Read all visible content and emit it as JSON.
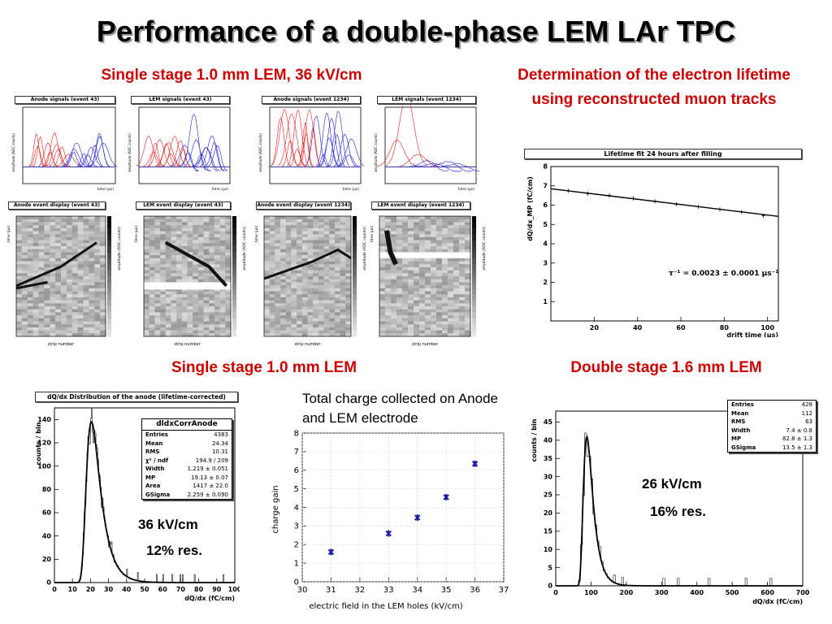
{
  "slide": {
    "title": "Performance of a double-phase LEM LAr TPC",
    "heading_top_left": "Single stage 1.0 mm LEM, 36 kV/cm",
    "heading_top_right": "Determination of the electron lifetime using reconstructed muon tracks",
    "heading_bottom_left": "Single stage 1.0 mm LEM",
    "heading_bottom_right": "Double stage 1.6 mm LEM",
    "heading_bottom_middle": "Total charge collected on Anode and LEM electrode",
    "note_left_field": "36 kV/cm",
    "note_left_res": "12% res.",
    "note_right_field": "26 kV/cm",
    "note_right_res": "16% res."
  },
  "signals": {
    "titles": [
      "Anode signals (event 43)",
      "LEM signals (event 43)",
      "Anode signals (event 1234)",
      "LEM signals (event 1234)"
    ],
    "ylabel": "amplitude (ADC counts)",
    "xlabel": "time (µs)"
  },
  "displays": {
    "titles": [
      "Anode event display (event 43)",
      "LEM event display (event 43)",
      "Anode event display (event 1234)",
      "LEM event display (event 1234)"
    ],
    "xlabel": "strip number",
    "ylabel": "time (µs)",
    "zlabel": "amplitude (ADC counts)"
  },
  "colors": {
    "heading_red": "#cc0000",
    "signal_red": "#e02020",
    "signal_blue": "#2020d0",
    "gain_marker": "#1a1aa0"
  },
  "chart_data": [
    {
      "id": "lifetime",
      "type": "line",
      "title": "Lifetime fit 24 hours after filling",
      "xlabel": "drift time (µs)",
      "ylabel": "dQ/dx_MP (fC/cm)",
      "xlim": [
        0,
        105
      ],
      "ylim": [
        0,
        8
      ],
      "xticks": [
        20,
        40,
        60,
        80,
        100
      ],
      "yticks": [
        1,
        2,
        3,
        4,
        5,
        6,
        7,
        8
      ],
      "points_x": [
        8,
        17,
        27,
        38,
        48,
        58,
        68,
        78,
        88,
        98
      ],
      "points_y": [
        6.75,
        6.6,
        6.5,
        6.35,
        6.2,
        6.05,
        5.92,
        5.78,
        5.65,
        5.45
      ],
      "fit": {
        "x0": 0,
        "y0": 6.85,
        "x1": 105,
        "y1": 5.42
      },
      "annotation": "τ⁻¹ = 0.0023 ± 0.0001 µs⁻¹"
    },
    {
      "id": "anode-dqdx",
      "type": "bar",
      "title": "dQ/dx Distribution of the anode (lifetime-corrected)",
      "xlabel": "dQ/dx (fC/cm)",
      "ylabel": "counts / bin",
      "xlim": [
        0,
        100
      ],
      "ylim": [
        0,
        150
      ],
      "xticks": [
        0,
        10,
        20,
        30,
        40,
        50,
        60,
        70,
        80,
        90,
        100
      ],
      "yticks": [
        0,
        20,
        40,
        60,
        80,
        100,
        120,
        140
      ],
      "peak": 20.5,
      "peak_height": 138,
      "gauss_sigma": 3.0,
      "landau_width": 2.6,
      "stats": {
        "name": "dldxCorrAnode",
        "rows": [
          [
            "Entries",
            "4383"
          ],
          [
            "Mean",
            "24.34"
          ],
          [
            "RMS",
            "10.31"
          ],
          [
            "χ² / ndf",
            "194.9 / 209"
          ],
          [
            "Width",
            "1.219 ± 0.051"
          ],
          [
            "MP",
            "19.13 ± 0.07"
          ],
          [
            "Area",
            "1417 ± 22.0"
          ],
          [
            "GSigma",
            "2.259 ± 0.090"
          ]
        ]
      }
    },
    {
      "id": "charge-gain",
      "type": "scatter",
      "title": "",
      "xlabel": "electric field in the LEM holes (kV/cm)",
      "ylabel": "charge gain",
      "xlim": [
        30,
        37
      ],
      "ylim": [
        0,
        8
      ],
      "xticks": [
        30,
        31,
        32,
        33,
        34,
        35,
        36,
        37
      ],
      "yticks": [
        0,
        1,
        2,
        3,
        4,
        5,
        6,
        7,
        8
      ],
      "x": [
        31,
        33,
        34,
        35,
        36
      ],
      "y": [
        1.6,
        2.6,
        3.45,
        4.55,
        6.35
      ]
    },
    {
      "id": "double-lem-dqdx",
      "type": "bar",
      "title": "",
      "xlabel": "dQ/dx (fC/cm)",
      "ylabel": "counts / bin",
      "xlim": [
        0,
        700
      ],
      "ylim": [
        0,
        48
      ],
      "xticks": [
        0,
        100,
        200,
        300,
        400,
        500,
        600,
        700
      ],
      "yticks": [
        0,
        5,
        10,
        15,
        20,
        25,
        30,
        35,
        40,
        45
      ],
      "peak": 88,
      "peak_height": 41,
      "gauss_sigma": 14,
      "landau_width": 9,
      "stats": {
        "name": "",
        "rows": [
          [
            "Entries",
            "428"
          ],
          [
            "Mean",
            "112"
          ],
          [
            "RMS",
            "63"
          ],
          [
            "Width",
            "7.4 ± 0.8"
          ],
          [
            "MP",
            "82.8 ± 1.3"
          ],
          [
            "GSigma",
            "13.5 ± 1.3"
          ]
        ]
      }
    }
  ]
}
